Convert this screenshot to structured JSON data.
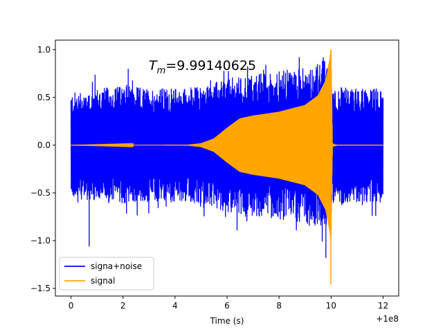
{
  "chart_data": {
    "type": "line",
    "title": "",
    "xlabel": "Time (s)",
    "ylabel": "",
    "x_offset_label": "+1e8",
    "xlim": [
      -0.6,
      12.6
    ],
    "ylim": [
      -1.58,
      1.1
    ],
    "x_ticks": [
      0,
      2,
      4,
      6,
      8,
      10,
      12
    ],
    "x_tick_labels": [
      "0",
      "2",
      "4",
      "6",
      "8",
      "10",
      "12"
    ],
    "y_ticks": [
      1.0,
      0.5,
      0.0,
      -0.5,
      -1.0,
      -1.5
    ],
    "y_tick_labels": [
      "1.0",
      "0.5",
      "0.0",
      "−0.5",
      "−1.0",
      "−1.5"
    ],
    "annotation": {
      "symbol": "T",
      "subscript": "m",
      "text": "=9.99140625"
    },
    "legend": {
      "placement": "lower-left",
      "entries": [
        "signa+noise",
        "signal"
      ]
    },
    "series": [
      {
        "name": "signa+noise",
        "color": "#0000ff",
        "style": "noise band around signal envelope",
        "x_range": [
          0,
          12
        ],
        "envelope_upper": [
          [
            0,
            0.55
          ],
          [
            1,
            0.6
          ],
          [
            2,
            0.62
          ],
          [
            3,
            0.6
          ],
          [
            4,
            0.6
          ],
          [
            5,
            0.62
          ],
          [
            6,
            0.7
          ],
          [
            7,
            0.75
          ],
          [
            8,
            0.78
          ],
          [
            9,
            0.82
          ],
          [
            9.8,
            0.9
          ],
          [
            10,
            0.62
          ],
          [
            11,
            0.6
          ],
          [
            12,
            0.6
          ]
        ],
        "envelope_lower": [
          [
            0,
            -0.55
          ],
          [
            1,
            -0.6
          ],
          [
            2,
            -0.62
          ],
          [
            3,
            -0.6
          ],
          [
            4,
            -0.6
          ],
          [
            5,
            -0.62
          ],
          [
            6,
            -0.7
          ],
          [
            7,
            -0.75
          ],
          [
            8,
            -0.78
          ],
          [
            9,
            -0.82
          ],
          [
            9.8,
            -0.9
          ],
          [
            10,
            -0.62
          ],
          [
            11,
            -0.6
          ],
          [
            12,
            -0.6
          ]
        ],
        "extremes": [
          {
            "x": 0.7,
            "y": -1.06
          },
          {
            "x": 9.8,
            "y": -1.18
          },
          {
            "x": 2.2,
            "y": 0.8
          },
          {
            "x": 9.7,
            "y": 0.92
          }
        ]
      },
      {
        "name": "signal",
        "color": "#ffa500",
        "style": "chirp waveform envelope",
        "envelope": [
          [
            0,
            0.0
          ],
          [
            4.5,
            0.005
          ],
          [
            5.0,
            0.02
          ],
          [
            5.5,
            0.07
          ],
          [
            6.0,
            0.18
          ],
          [
            6.5,
            0.28
          ],
          [
            7.0,
            0.31
          ],
          [
            8.0,
            0.35
          ],
          [
            9.0,
            0.42
          ],
          [
            9.5,
            0.52
          ],
          [
            9.8,
            0.68
          ],
          [
            9.95,
            0.9
          ],
          [
            10.0,
            1.0
          ],
          [
            10.05,
            0.02
          ],
          [
            10.2,
            0.0
          ],
          [
            12,
            0.0
          ]
        ],
        "peak": {
          "x": 9.99,
          "y": 1.0
        },
        "trough": {
          "x": 9.99,
          "y": -1.46
        }
      }
    ]
  }
}
